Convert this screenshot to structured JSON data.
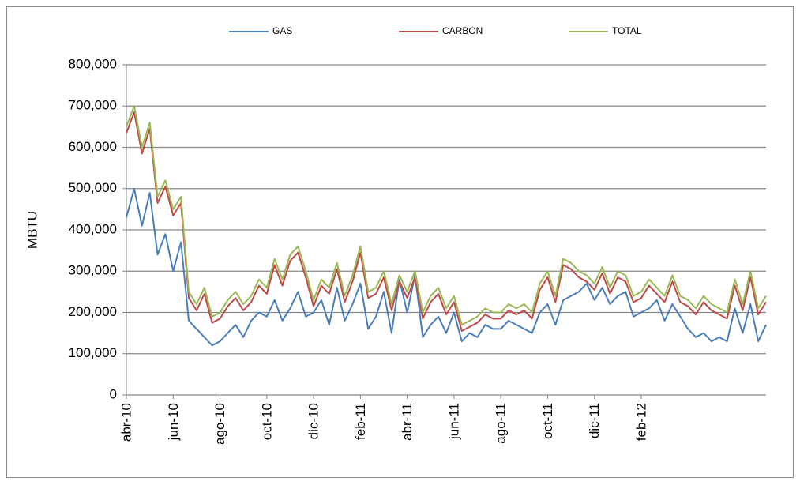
{
  "chart_data": {
    "type": "line",
    "y_label": "MBTU",
    "categories": [
      "abr-10",
      null,
      null,
      null,
      null,
      null,
      "jun-10",
      null,
      null,
      null,
      null,
      null,
      "ago-10",
      null,
      null,
      null,
      null,
      null,
      "oct-10",
      null,
      null,
      null,
      null,
      null,
      "dic-10",
      null,
      null,
      null,
      null,
      null,
      "feb-11",
      null,
      null,
      null,
      null,
      null,
      "abr-11",
      null,
      null,
      null,
      null,
      null,
      "jun-11",
      null,
      null,
      null,
      null,
      null,
      "ago-11",
      null,
      null,
      null,
      null,
      null,
      "oct-11",
      null,
      null,
      null,
      null,
      null,
      "dic-11",
      null,
      null,
      null,
      null,
      null,
      "feb-12",
      null,
      null,
      null,
      null,
      null,
      null,
      null,
      null,
      null,
      null,
      null,
      null,
      null,
      null,
      null,
      null
    ],
    "series": [
      {
        "name": "GAS",
        "color": "#4a7ebb",
        "values": [
          430000,
          500000,
          410000,
          490000,
          340000,
          390000,
          300000,
          370000,
          180000,
          160000,
          140000,
          120000,
          130000,
          150000,
          170000,
          140000,
          180000,
          200000,
          190000,
          230000,
          180000,
          210000,
          250000,
          190000,
          200000,
          230000,
          170000,
          260000,
          180000,
          220000,
          270000,
          160000,
          190000,
          250000,
          150000,
          280000,
          200000,
          290000,
          140000,
          170000,
          190000,
          150000,
          200000,
          130000,
          150000,
          140000,
          170000,
          160000,
          160000,
          180000,
          170000,
          160000,
          150000,
          200000,
          220000,
          170000,
          230000,
          240000,
          250000,
          270000,
          230000,
          260000,
          220000,
          240000,
          250000,
          190000,
          200000,
          210000,
          230000,
          180000,
          220000,
          190000,
          160000,
          140000,
          150000,
          130000,
          140000,
          130000,
          210000,
          150000,
          220000,
          130000,
          170000
        ]
      },
      {
        "name": "CARBON",
        "color": "#be4b48",
        "values": [
          635000,
          685000,
          585000,
          645000,
          465000,
          505000,
          435000,
          465000,
          235000,
          205000,
          245000,
          175000,
          185000,
          215000,
          235000,
          205000,
          225000,
          265000,
          245000,
          315000,
          265000,
          325000,
          345000,
          285000,
          215000,
          265000,
          245000,
          305000,
          225000,
          275000,
          345000,
          235000,
          245000,
          285000,
          205000,
          275000,
          235000,
          285000,
          185000,
          225000,
          245000,
          195000,
          225000,
          155000,
          165000,
          175000,
          195000,
          185000,
          185000,
          205000,
          195000,
          205000,
          185000,
          255000,
          285000,
          225000,
          315000,
          305000,
          285000,
          275000,
          255000,
          295000,
          245000,
          285000,
          275000,
          225000,
          235000,
          265000,
          245000,
          225000,
          275000,
          225000,
          215000,
          195000,
          225000,
          205000,
          195000,
          185000,
          265000,
          205000,
          285000,
          195000,
          225000
        ]
      },
      {
        "name": "TOTAL",
        "color": "#98b954",
        "values": [
          650000,
          700000,
          600000,
          660000,
          480000,
          520000,
          450000,
          480000,
          250000,
          220000,
          260000,
          190000,
          200000,
          230000,
          250000,
          220000,
          240000,
          280000,
          260000,
          330000,
          280000,
          340000,
          360000,
          300000,
          230000,
          280000,
          260000,
          320000,
          240000,
          290000,
          360000,
          250000,
          260000,
          300000,
          220000,
          290000,
          250000,
          300000,
          200000,
          240000,
          260000,
          210000,
          240000,
          170000,
          180000,
          190000,
          210000,
          200000,
          200000,
          220000,
          210000,
          220000,
          200000,
          270000,
          300000,
          240000,
          330000,
          320000,
          300000,
          290000,
          270000,
          310000,
          260000,
          300000,
          290000,
          240000,
          250000,
          280000,
          260000,
          240000,
          290000,
          240000,
          230000,
          210000,
          240000,
          220000,
          210000,
          200000,
          280000,
          220000,
          300000,
          210000,
          240000
        ]
      }
    ],
    "ylim": [
      0,
      800000
    ],
    "yticks": [
      0,
      {
        "value": 100000,
        "label": "100,000"
      },
      {
        "value": 200000,
        "label": "200,000"
      },
      {
        "value": 300000,
        "label": "300,000"
      },
      {
        "value": 400000,
        "label": "400,000"
      },
      {
        "value": 500000,
        "label": "500,000"
      },
      {
        "value": 600000,
        "label": "600,000"
      },
      {
        "value": 700000,
        "label": "700,000"
      },
      {
        "value": 800000,
        "label": "800,000"
      }
    ],
    "grid": true
  }
}
